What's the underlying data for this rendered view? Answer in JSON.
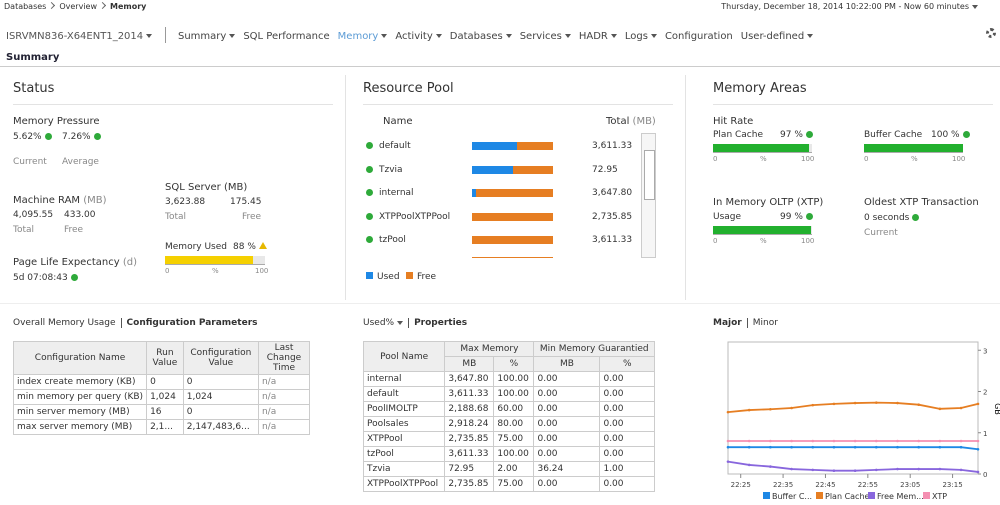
{
  "breadcrumb": [
    "Databases",
    "Overview",
    "Memory"
  ],
  "time_range": "Thursday, December 18, 2014 10:22:00 PM - Now 60 minutes",
  "server": "ISRVMN836-X64ENT1_2014",
  "nav": [
    "Summary",
    "SQL Performance",
    "Memory",
    "Activity",
    "Databases",
    "Services",
    "HADR",
    "Logs",
    "Configuration",
    "User-defined"
  ],
  "page_title": "Summary",
  "status": {
    "title": "Status",
    "memory_pressure": {
      "label": "Memory Pressure",
      "current": "5.62%",
      "average": "7.26%",
      "current_label": "Current",
      "average_label": "Average"
    },
    "machine_ram": {
      "label": "Machine RAM",
      "unit": "(MB)",
      "total": "4,095.55",
      "free": "433.00",
      "total_label": "Total",
      "free_label": "Free"
    },
    "sql_server": {
      "label": "SQL Server (MB)",
      "total": "3,623.88",
      "free": "175.45",
      "total_label": "Total",
      "free_label": "Free"
    },
    "memory_used": {
      "label": "Memory Used",
      "value": 88,
      "value_label": "88 %",
      "axis": [
        "0",
        "%",
        "100"
      ]
    },
    "ple": {
      "label": "Page Life Expectancy",
      "unit": "(d)",
      "value": "5d 07:08:43"
    }
  },
  "resource_pool": {
    "title": "Resource Pool",
    "name_header": "Name",
    "total_header": "Total",
    "total_unit": "(MB)",
    "rows": [
      {
        "name": "default",
        "used_percent": 55,
        "total": "3,611.33"
      },
      {
        "name": "Tzvia",
        "used_percent": 50,
        "total": "72.95"
      },
      {
        "name": "internal",
        "used_percent": 5,
        "total": "3,647.80"
      },
      {
        "name": "XTPPoolXTPPool",
        "used_percent": 0,
        "total": "2,735.85"
      },
      {
        "name": "tzPool",
        "used_percent": 0,
        "total": "3,611.33"
      }
    ],
    "legend": [
      "Used",
      "Free"
    ]
  },
  "memory_areas": {
    "title": "Memory Areas",
    "hit_rate": "Hit Rate",
    "plan_cache": {
      "label": "Plan Cache",
      "value": 97,
      "value_label": "97 %",
      "axis": [
        "0",
        "%",
        "100"
      ]
    },
    "buffer_cache": {
      "label": "Buffer Cache",
      "value": 100,
      "value_label": "100 %",
      "axis": [
        "0",
        "%",
        "100"
      ]
    },
    "xtp": {
      "title": "In Memory OLTP (XTP)",
      "label": "Usage",
      "value": 99,
      "value_label": "99 %",
      "axis": [
        "0",
        "%",
        "100"
      ]
    },
    "oldest": {
      "title": "Oldest XTP Transaction",
      "value": "0 seconds",
      "label": "Current"
    }
  },
  "config": {
    "tab1": "Overall Memory Usage",
    "tab2": "Configuration Parameters",
    "columns": [
      "Configuration Name",
      "Run Value",
      "Configuration Value",
      "Last Change Time"
    ],
    "rows": [
      [
        "index create memory (KB)",
        "0",
        "0",
        "n/a"
      ],
      [
        "min memory per query (KB)",
        "1,024",
        "1,024",
        "n/a"
      ],
      [
        "min server memory (MB)",
        "16",
        "0",
        "n/a"
      ],
      [
        "max server memory (MB)",
        "2,1...",
        "2,147,483,6...",
        "n/a"
      ]
    ]
  },
  "properties": {
    "tab1": "Used%",
    "tab2": "Properties",
    "columns": [
      "Pool Name",
      "Max Memory",
      "Min Memory Guarantied"
    ],
    "subcolumns": [
      "MB",
      "%",
      "MB",
      "%"
    ],
    "rows": [
      [
        "internal",
        "3,647.80",
        "100.00",
        "0.00",
        "0.00"
      ],
      [
        "default",
        "3,611.33",
        "100.00",
        "0.00",
        "0.00"
      ],
      [
        "PoolIMOLTP",
        "2,188.68",
        "60.00",
        "0.00",
        "0.00"
      ],
      [
        "Poolsales",
        "2,918.24",
        "80.00",
        "0.00",
        "0.00"
      ],
      [
        "XTPPool",
        "2,735.85",
        "75.00",
        "0.00",
        "0.00"
      ],
      [
        "tzPool",
        "3,611.33",
        "100.00",
        "0.00",
        "0.00"
      ],
      [
        "Tzvia",
        "72.95",
        "2.00",
        "36.24",
        "1.00"
      ],
      [
        "XTPPoolXTPPool",
        "2,735.85",
        "75.00",
        "0.00",
        "0.00"
      ]
    ]
  },
  "chart_data": {
    "type": "line",
    "tabs": [
      "Major",
      "Minor"
    ],
    "y2label": "GB",
    "x": [
      "22:22",
      "22:27",
      "22:32",
      "22:37",
      "22:42",
      "22:47",
      "22:52",
      "22:57",
      "23:02",
      "23:07",
      "23:12",
      "23:17",
      "23:21"
    ],
    "xlim": [
      "22:22",
      "23:21"
    ],
    "xticks": [
      "22:25",
      "22:35",
      "22:45",
      "22:55",
      "23:05",
      "23:15"
    ],
    "y2lim": [
      0,
      3.2
    ],
    "y2ticks": [
      0,
      1,
      2,
      3
    ],
    "series": [
      {
        "name": "Buffer C...",
        "color": "#1e88e5",
        "axis": "y2",
        "values": [
          0.65,
          0.65,
          0.65,
          0.65,
          0.65,
          0.65,
          0.65,
          0.65,
          0.65,
          0.65,
          0.65,
          0.65,
          0.6
        ]
      },
      {
        "name": "Plan Cache",
        "color": "#e67e22",
        "axis": "y2",
        "values": [
          1.5,
          1.55,
          1.57,
          1.6,
          1.67,
          1.7,
          1.72,
          1.73,
          1.72,
          1.68,
          1.58,
          1.6,
          1.7
        ]
      },
      {
        "name": "Free Mem...",
        "color": "#8866dd",
        "axis": "y2",
        "values": [
          0.3,
          0.22,
          0.18,
          0.12,
          0.1,
          0.08,
          0.08,
          0.1,
          0.12,
          0.12,
          0.12,
          0.1,
          0.05
        ]
      },
      {
        "name": "XTP",
        "color": "#f48fb1",
        "axis": "y2",
        "values": [
          0.8,
          0.8,
          0.8,
          0.8,
          0.8,
          0.8,
          0.8,
          0.8,
          0.8,
          0.8,
          0.8,
          0.8,
          0.8
        ]
      }
    ]
  }
}
